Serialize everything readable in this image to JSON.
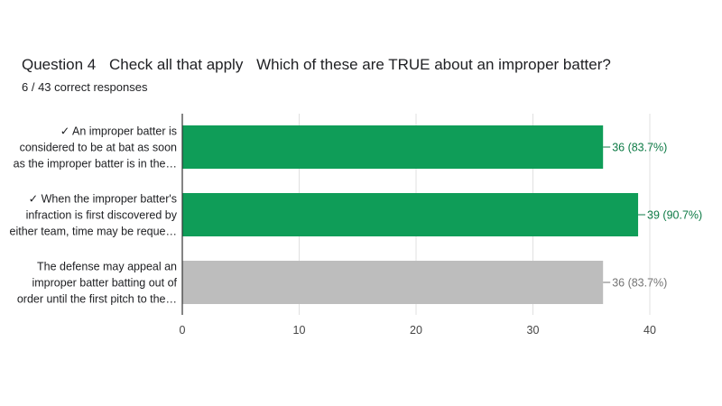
{
  "question": {
    "number_label": "Question 4",
    "type_label": "Check all that apply",
    "text": "Which of these are TRUE about an improper batter?",
    "score_summary": "6 / 43 correct responses"
  },
  "colors": {
    "correct_bar": "#0f9d58",
    "incorrect_bar": "#bdbdbd",
    "correct_label": "#0d7a45",
    "incorrect_label": "#757575",
    "grid": "#e0e0e0",
    "axis": "#333333",
    "text": "#202124"
  },
  "chart_data": {
    "type": "bar",
    "orientation": "horizontal",
    "categories": [
      {
        "lines": [
          "✓ An improper batter is",
          "considered to be at bat as soon",
          "as the improper batter is in the…"
        ],
        "correct": true
      },
      {
        "lines": [
          "✓ When the improper batter's",
          "infraction is first discovered by",
          "either team, time may be reque…"
        ],
        "correct": true
      },
      {
        "lines": [
          "The defense may appeal an",
          "improper batter batting out of",
          "order until the first pitch to the…"
        ],
        "correct": false
      }
    ],
    "values": [
      36,
      39,
      36
    ],
    "value_labels": [
      "36 (83.7%)",
      "39 (90.7%)",
      "36 (83.7%)"
    ],
    "xlim": [
      0,
      40
    ],
    "x_ticks": [
      "0",
      "10",
      "20",
      "30",
      "40"
    ],
    "grid": true,
    "xlabel": "",
    "ylabel": ""
  }
}
